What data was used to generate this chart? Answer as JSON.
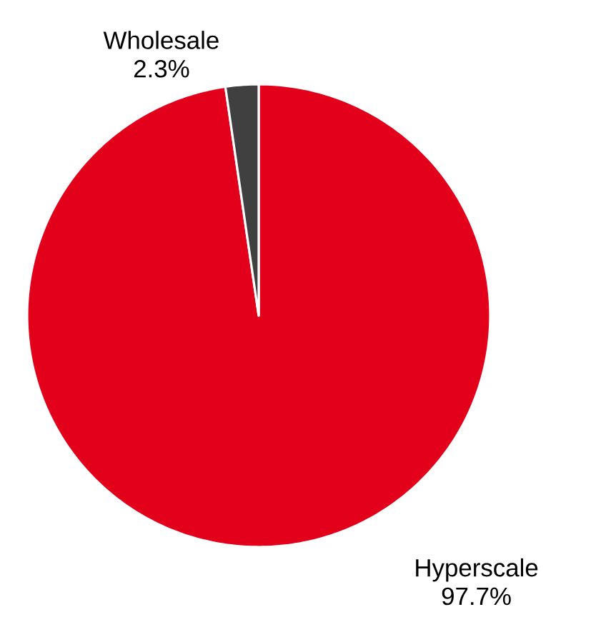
{
  "chart_data": {
    "type": "pie",
    "categories": [
      "Hyperscale",
      "Wholesale"
    ],
    "values": [
      97.7,
      2.3
    ],
    "value_labels": [
      "97.7%",
      "2.3%"
    ],
    "colors": [
      "#e2001a",
      "#404040"
    ]
  }
}
